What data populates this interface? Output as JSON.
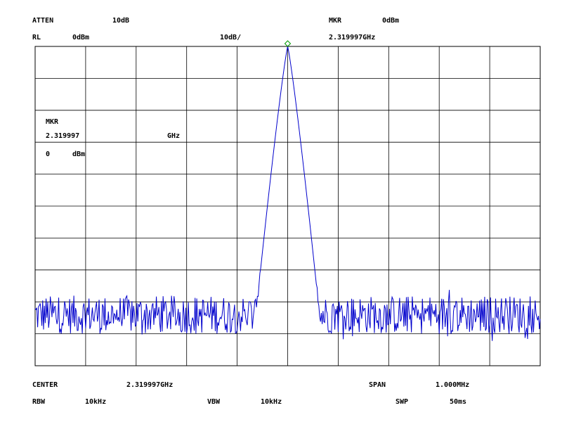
{
  "header": {
    "atten_label": "ATTEN",
    "atten_value": "10dB",
    "rl_label": "RL",
    "rl_value": "0dBm",
    "scale": "10dB/",
    "mkr_label": "MKR",
    "mkr_value": "0dBm",
    "mkr_freq": "2.319997GHz"
  },
  "marker_box": {
    "label": "MKR",
    "freq_value": "2.319997",
    "freq_unit": "GHz",
    "level_value": "0",
    "level_unit": "dBm"
  },
  "footer": {
    "center_label": "CENTER",
    "center_value": "2.319997GHz",
    "span_label": "SPAN",
    "span_value": "1.000MHz",
    "rbw_label": "RBW",
    "rbw_value": "10kHz",
    "vbw_label": "VBW",
    "vbw_value": "10kHz",
    "swp_label": "SWP",
    "swp_value": "50ms"
  },
  "chart_data": {
    "type": "line",
    "grid": true,
    "x_divisions": 10,
    "y_divisions": 10,
    "xlim": [
      -500,
      500
    ],
    "ylim": [
      -100,
      0
    ],
    "x_units": "kHz offset from center",
    "y_units": "dBm",
    "noise_floor_dbm": -84,
    "noise_amplitude_db": 6,
    "peak": {
      "x": 0,
      "y": 0,
      "half_width_at_-60dB": 47
    },
    "marker": {
      "x": 0,
      "y": 0
    },
    "colors": {
      "trace": "#0000cc",
      "marker": "#009900",
      "grid": "#000000"
    }
  }
}
